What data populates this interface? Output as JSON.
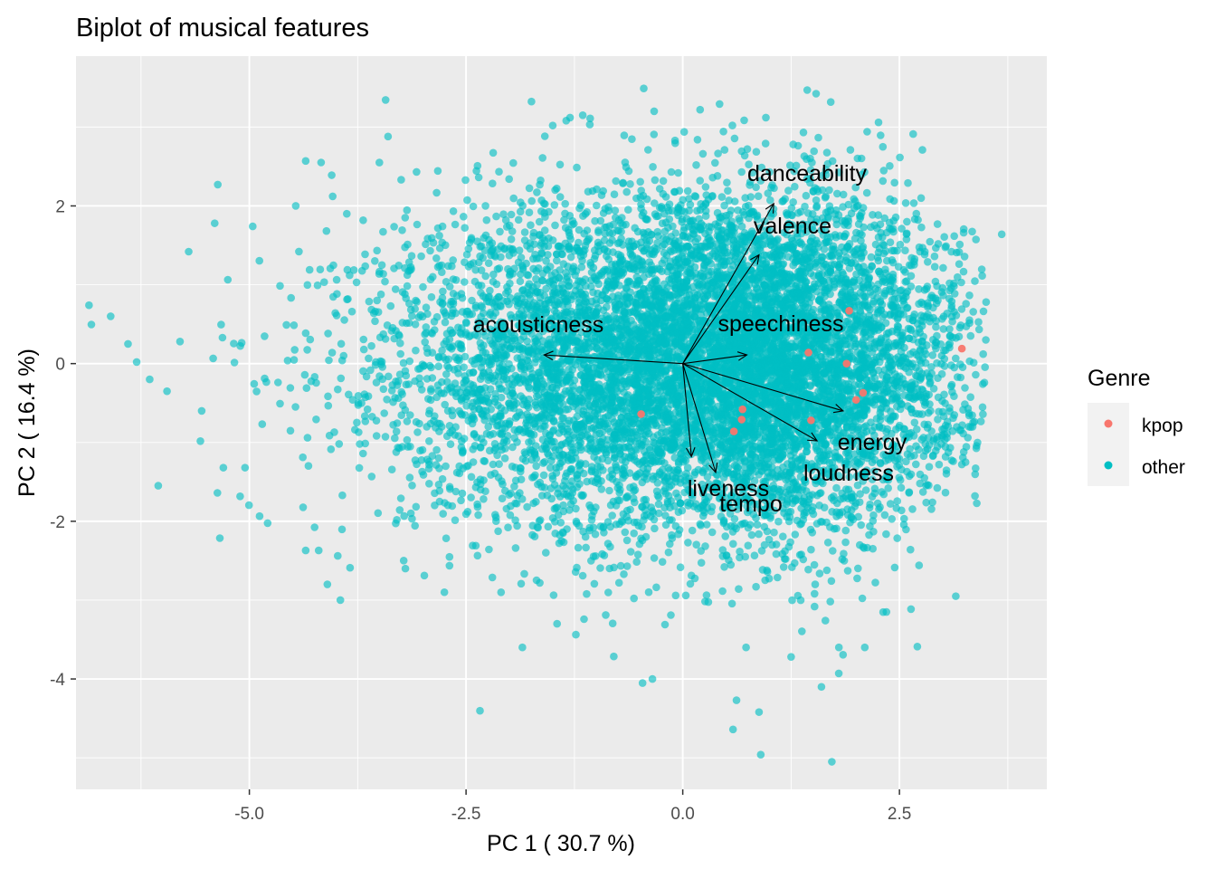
{
  "chart_data": {
    "type": "scatter",
    "title": "Biplot of musical features",
    "xlabel": "PC 1 ( 30.7 %)",
    "ylabel": "PC 2 ( 16.4 %)",
    "xlim": [
      -7.0,
      4.2
    ],
    "ylim": [
      -5.4,
      3.9
    ],
    "x_ticks": [
      -5.0,
      -2.5,
      0.0,
      2.5
    ],
    "x_tick_labels": [
      "-5.0",
      "-2.5",
      "0.0",
      "2.5"
    ],
    "y_ticks": [
      -4,
      -2,
      0,
      2
    ],
    "y_tick_labels": [
      "-4",
      "-2",
      "0",
      "2"
    ],
    "grid": true,
    "legend": {
      "title": "Genre",
      "position": "right",
      "entries": [
        {
          "label": "kpop",
          "color": "#F8766D"
        },
        {
          "label": "other",
          "color": "#00BFC4"
        }
      ]
    },
    "series": [
      {
        "name": "kpop",
        "color": "#F8766D",
        "points": [
          [
            1.92,
            0.67
          ],
          [
            1.45,
            0.14
          ],
          [
            1.89,
            0.0
          ],
          [
            2.08,
            -0.37
          ],
          [
            2.0,
            -0.46
          ],
          [
            1.48,
            -0.72
          ],
          [
            0.69,
            -0.58
          ],
          [
            0.68,
            -0.71
          ],
          [
            0.59,
            -0.86
          ],
          [
            -0.48,
            -0.64
          ],
          [
            3.22,
            0.19
          ]
        ]
      },
      {
        "name": "other",
        "color": "#00BFC4",
        "n_points": 9000,
        "x_center": 0.0,
        "x_sd": 1.35,
        "y_center": 0.0,
        "y_sd": 1.05,
        "outlier_points": [
          [
            -6.85,
            0.74
          ],
          [
            -6.6,
            0.6
          ],
          [
            -6.4,
            0.25
          ],
          [
            -6.3,
            0.02
          ],
          [
            -6.15,
            -0.2
          ],
          [
            -5.95,
            -0.35
          ],
          [
            -5.8,
            0.28
          ],
          [
            -5.7,
            1.42
          ],
          [
            -5.55,
            -0.6
          ],
          [
            -5.4,
            1.78
          ],
          [
            -5.3,
            -1.32
          ],
          [
            -5.05,
            -1.32
          ],
          [
            -4.1,
            -2.8
          ],
          [
            -3.95,
            -3.0
          ],
          [
            -4.35,
            -2.37
          ],
          [
            -4.2,
            -2.37
          ],
          [
            -3.4,
            2.88
          ],
          [
            -3.5,
            2.55
          ],
          [
            -4.35,
            2.57
          ],
          [
            -4.05,
            2.39
          ],
          [
            -0.45,
            3.49
          ],
          [
            -0.33,
            3.2
          ],
          [
            -1.3,
            3.12
          ],
          [
            -1.5,
            3.02
          ],
          [
            -0.35,
            -4.0
          ],
          [
            0.58,
            -4.64
          ],
          [
            0.9,
            -4.96
          ],
          [
            1.72,
            -5.05
          ],
          [
            0.88,
            -4.42
          ],
          [
            3.15,
            -2.95
          ],
          [
            3.68,
            1.64
          ],
          [
            3.3,
            -0.8
          ],
          [
            3.1,
            0.7
          ],
          [
            2.75,
            2.1
          ],
          [
            -1.85,
            -3.6
          ],
          [
            -1.45,
            -3.3
          ],
          [
            -3.2,
            -2.6
          ],
          [
            -2.75,
            -2.9
          ],
          [
            1.6,
            -4.1
          ],
          [
            2.1,
            -3.6
          ],
          [
            0.62,
            -4.27
          ],
          [
            1.25,
            -3.72
          ],
          [
            1.8,
            -3.93
          ],
          [
            2.35,
            -3.15
          ]
        ]
      }
    ],
    "loadings": [
      {
        "label": "danceability",
        "x": 1.05,
        "y": 2.03
      },
      {
        "label": "valence",
        "x": 0.88,
        "y": 1.38
      },
      {
        "label": "acousticness",
        "x": -1.6,
        "y": 0.11
      },
      {
        "label": "speechiness",
        "x": 0.74,
        "y": 0.11
      },
      {
        "label": "energy",
        "x": 1.85,
        "y": -0.6
      },
      {
        "label": "loudness",
        "x": 1.55,
        "y": -0.98
      },
      {
        "label": "liveness",
        "x": 0.1,
        "y": -1.18
      },
      {
        "label": "tempo",
        "x": 0.38,
        "y": -1.38
      }
    ]
  }
}
